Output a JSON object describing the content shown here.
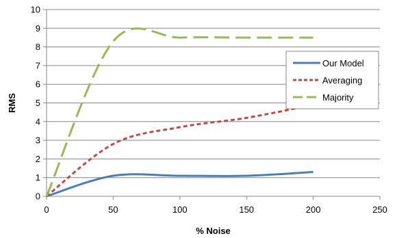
{
  "chart_data": {
    "type": "line",
    "xlabel": "% Noise",
    "ylabel": "RMS",
    "xlim": [
      0,
      250
    ],
    "ylim": [
      0,
      10
    ],
    "x_ticks": [
      0,
      50,
      100,
      150,
      200,
      250
    ],
    "y_ticks": [
      0,
      1,
      2,
      3,
      4,
      5,
      6,
      7,
      8,
      9,
      10
    ],
    "grid": "horizontal",
    "legend_position": "right",
    "series": [
      {
        "name": "Our Model",
        "color": "#4a7ebb",
        "style": "solid",
        "x": [
          0,
          50,
          100,
          150,
          200
        ],
        "y": [
          0,
          1.1,
          1.1,
          1.1,
          1.3
        ]
      },
      {
        "name": "Averaging",
        "color": "#be4b48",
        "style": "dotted",
        "x": [
          0,
          50,
          100,
          150,
          200
        ],
        "y": [
          0,
          2.8,
          3.7,
          4.2,
          4.9
        ]
      },
      {
        "name": "Majority",
        "color": "#98b954",
        "style": "dashed",
        "x": [
          0,
          50,
          100,
          150,
          200
        ],
        "y": [
          0,
          8.3,
          8.5,
          8.5,
          8.5
        ]
      }
    ]
  }
}
